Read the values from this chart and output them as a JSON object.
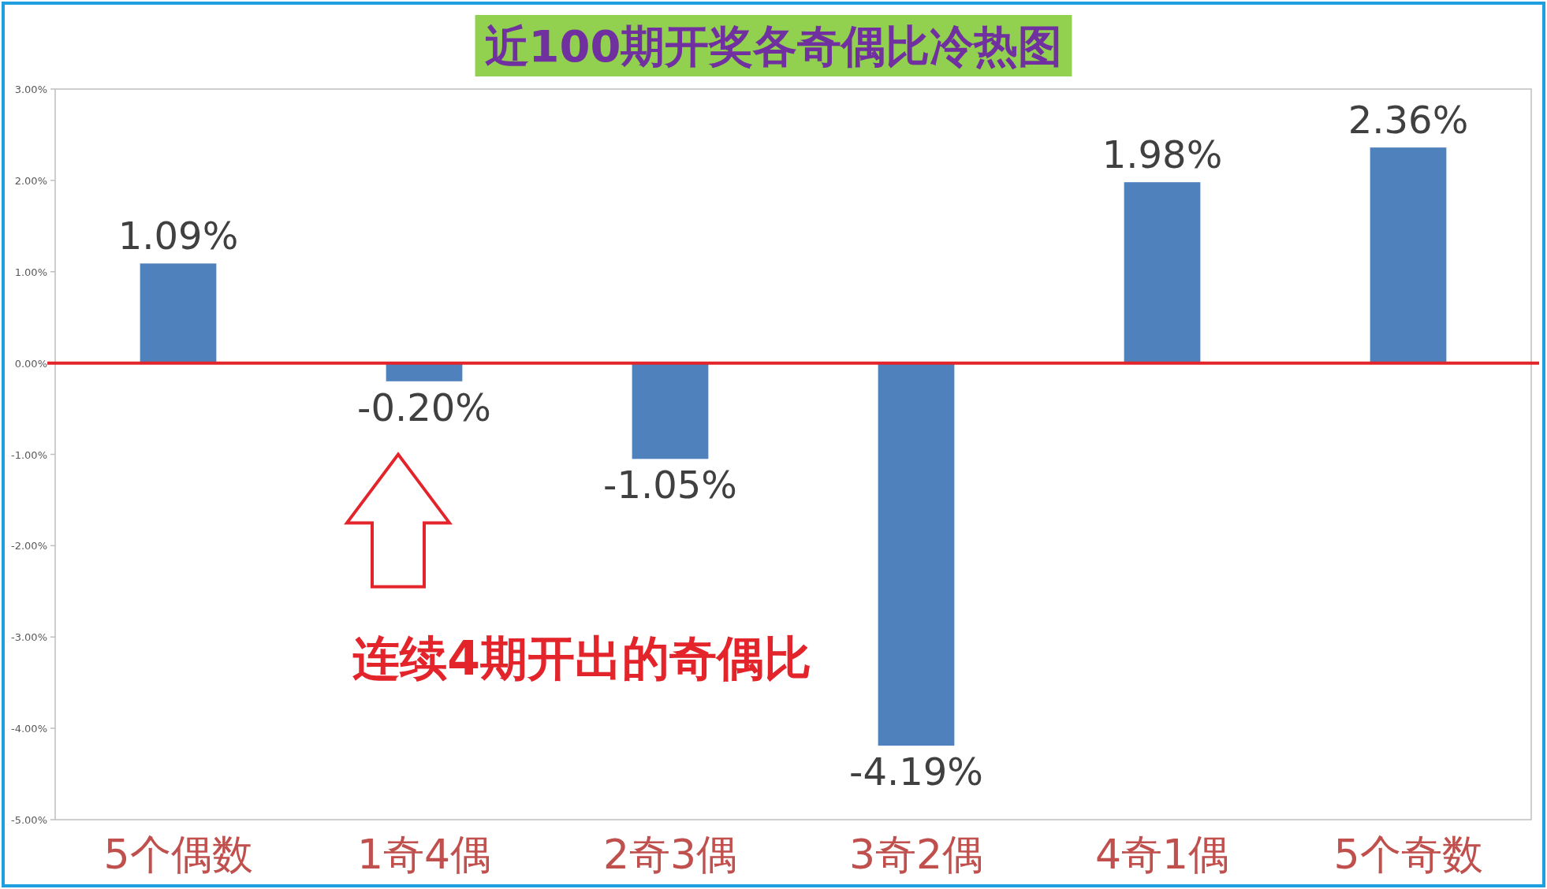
{
  "chart_data": {
    "type": "bar",
    "title": "近100期开奖各奇偶比冷热图",
    "categories": [
      "5个偶数",
      "1奇4偶",
      "2奇3偶",
      "3奇2偶",
      "4奇1偶",
      "5个奇数"
    ],
    "values": [
      1.09,
      -0.2,
      -1.05,
      -4.19,
      1.98,
      2.36
    ],
    "value_labels": [
      "1.09%",
      "-0.20%",
      "-1.05%",
      "-4.19%",
      "1.98%",
      "2.36%"
    ],
    "color": "#4f81bd",
    "ylim": [
      -5,
      3
    ],
    "yticks": [
      {
        "value": 3,
        "label": "3.00%"
      },
      {
        "value": 2,
        "label": "2.00%"
      },
      {
        "value": 1,
        "label": "1.00%"
      },
      {
        "value": 0,
        "label": "0.00%"
      },
      {
        "value": -1,
        "label": "-1.00%"
      },
      {
        "value": -2,
        "label": "-2.00%"
      },
      {
        "value": -3,
        "label": "-3.00%"
      },
      {
        "value": -4,
        "label": "-4.00%"
      },
      {
        "value": -5,
        "label": "-5.00%"
      }
    ],
    "ref_lines": [
      {
        "axis": "y",
        "value": 0,
        "color": "#e3242b"
      }
    ],
    "annotations": [
      "连续4期开出的奇偶比"
    ]
  }
}
